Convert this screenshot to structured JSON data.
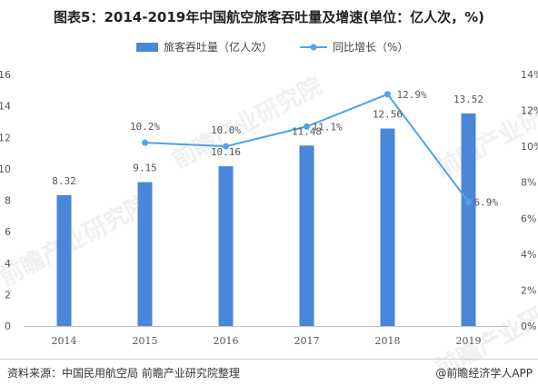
{
  "title": "图表5：2014-2019年中国航空旅客吞吐量及增速(单位：亿人次，%)",
  "legend": {
    "bar_label": "旅客吞吐量（亿人次）",
    "line_label": "同比增长（%）"
  },
  "chart_data": {
    "type": "bar",
    "categories": [
      "2014",
      "2015",
      "2016",
      "2017",
      "2018",
      "2019"
    ],
    "series": [
      {
        "name": "旅客吞吐量（亿人次）",
        "type": "bar",
        "axis": "left",
        "values": [
          8.32,
          9.15,
          10.16,
          11.48,
          12.56,
          13.52
        ],
        "labels": [
          "8.32",
          "9.15",
          "10.16",
          "11.48",
          "12.56",
          "13.52"
        ]
      },
      {
        "name": "同比增长（%）",
        "type": "line",
        "axis": "right",
        "values": [
          null,
          10.2,
          10.0,
          11.1,
          12.9,
          6.9
        ],
        "labels": [
          "",
          "10.2%",
          "10.0%",
          "11.1%",
          "12.9%",
          "6.9%"
        ]
      }
    ],
    "ylim": [
      0,
      16
    ],
    "y_ticks": [
      "0",
      "2",
      "4",
      "6",
      "8",
      "10",
      "12",
      "14",
      "16"
    ],
    "y2lim": [
      0,
      14
    ],
    "y2_ticks": [
      "0%",
      "2%",
      "4%",
      "6%",
      "8%",
      "10%",
      "12%",
      "14%"
    ],
    "grid": false,
    "legend_position": "top"
  },
  "colors": {
    "bar": "#4a86d9",
    "line": "#4da3ee",
    "axis": "#bfbfbf"
  },
  "footer": {
    "source": "资料来源：中国民用航空局 前瞻产业研究院整理",
    "brand": "@前瞻经济学人APP"
  },
  "watermark": "前瞻产业研究院"
}
